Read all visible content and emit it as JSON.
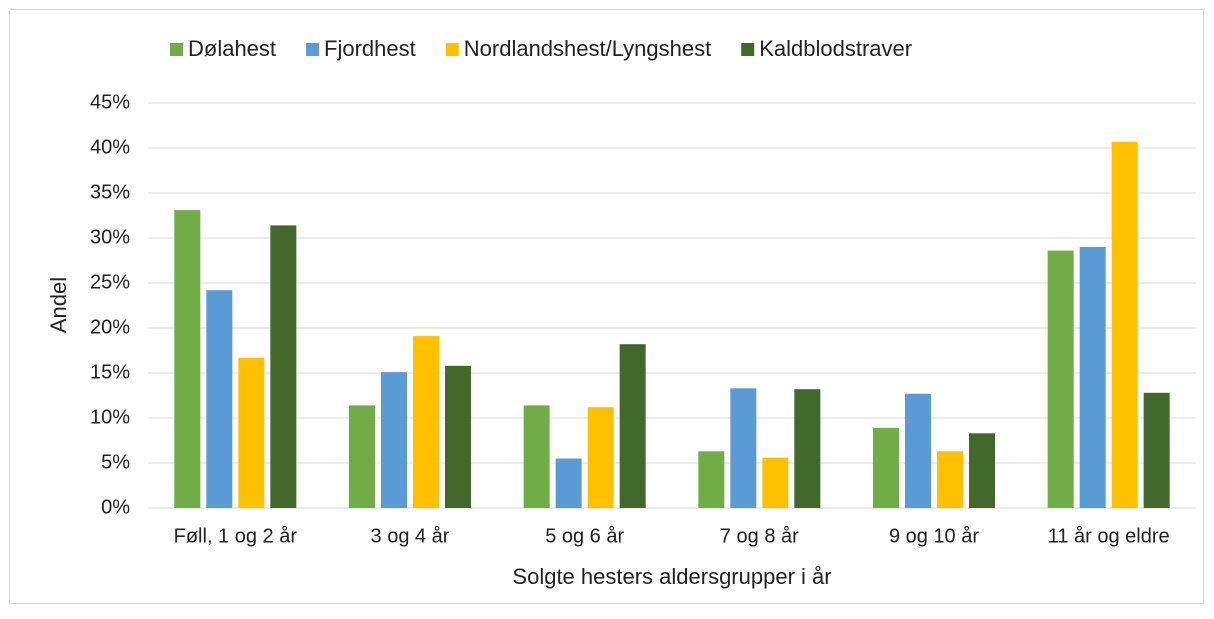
{
  "chart_data": {
    "type": "bar",
    "x_label": "Solgte hesters aldersgrupper i år",
    "y_label": "Andel",
    "categories": [
      "Føll, 1 og 2 år",
      "3 og 4 år",
      "5 og 6 år",
      "7 og 8 år",
      "9 og 10 år",
      "11 år og eldre"
    ],
    "series": [
      {
        "name": "Dølahest",
        "color": "#70ad47",
        "values": [
          33.1,
          11.4,
          11.4,
          6.3,
          8.9,
          28.6
        ]
      },
      {
        "name": "Fjordhest",
        "color": "#5b9bd5",
        "values": [
          24.2,
          15.1,
          5.5,
          13.3,
          12.7,
          29.0
        ]
      },
      {
        "name": "Nordlandshest/Lyngshest",
        "color": "#ffc000",
        "values": [
          16.7,
          19.1,
          11.2,
          5.6,
          6.3,
          40.7
        ]
      },
      {
        "name": "Kaldblodstraver",
        "color": "#43682b",
        "values": [
          31.4,
          15.8,
          18.2,
          13.2,
          8.3,
          12.8
        ]
      }
    ],
    "ylim": [
      0,
      45
    ],
    "yticks": [
      {
        "value": 0,
        "label": "0%"
      },
      {
        "value": 5,
        "label": "5%"
      },
      {
        "value": 10,
        "label": "10%"
      },
      {
        "value": 15,
        "label": "15%"
      },
      {
        "value": 20,
        "label": "20%"
      },
      {
        "value": 25,
        "label": "25%"
      },
      {
        "value": 30,
        "label": "30%"
      },
      {
        "value": 35,
        "label": "35%"
      },
      {
        "value": 40,
        "label": "40%"
      },
      {
        "value": 45,
        "label": "45%"
      }
    ],
    "grid": true,
    "legend": "top"
  }
}
